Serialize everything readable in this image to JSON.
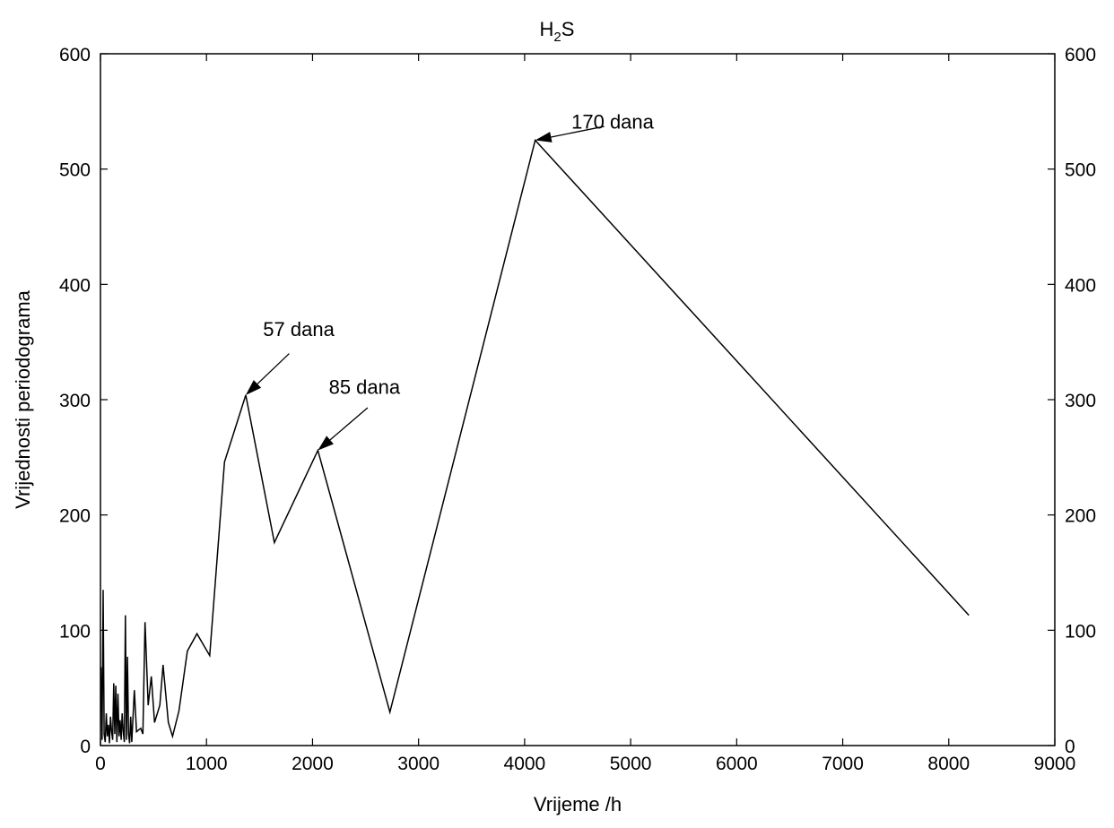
{
  "chart_data": {
    "type": "line",
    "title_main": "H",
    "title_sub": "2",
    "title_tail": "S",
    "xlabel": "Vrijeme /h",
    "ylabel": "Vrijednosti periodograma",
    "xlim": [
      0,
      9000
    ],
    "ylim": [
      0,
      600
    ],
    "x_ticks": [
      0,
      1000,
      2000,
      3000,
      4000,
      5000,
      6000,
      7000,
      8000,
      9000
    ],
    "y_ticks": [
      0,
      100,
      200,
      300,
      400,
      500,
      600
    ],
    "x_tick_labels": [
      "0",
      "1000",
      "2000",
      "3000",
      "4000",
      "5000",
      "6000",
      "7000",
      "8000",
      "9000"
    ],
    "y_tick_labels": [
      "0",
      "100",
      "200",
      "300",
      "400",
      "500",
      "600"
    ],
    "grid": false,
    "series": [
      {
        "x": [
          5,
          15,
          25,
          35,
          45,
          55,
          65,
          75,
          85,
          95,
          105,
          115,
          125,
          135,
          145,
          155,
          165,
          175,
          185,
          195,
          205,
          215,
          225,
          235,
          245,
          255,
          265,
          275,
          285,
          295,
          320,
          340,
          380,
          400,
          420,
          450,
          480,
          510,
          560,
          590,
          640,
          680,
          740,
          820,
          910,
          1030,
          1170,
          1370,
          1640,
          2050,
          2730,
          4100,
          8190
        ],
        "y": [
          68,
          5,
          135,
          10,
          3,
          28,
          8,
          18,
          2,
          25,
          12,
          5,
          54,
          10,
          52,
          3,
          45,
          8,
          22,
          5,
          28,
          12,
          3,
          113,
          5,
          77,
          10,
          2,
          25,
          3,
          48,
          12,
          15,
          10,
          107,
          35,
          60,
          20,
          35,
          70,
          20,
          8,
          30,
          82,
          97,
          78,
          246,
          304,
          176,
          256,
          29,
          525,
          113
        ],
        "color": "#000000"
      }
    ],
    "annotations": [
      {
        "text": "57 dana",
        "point": [
          1370,
          304
        ],
        "label": [
          1870,
          355
        ],
        "tail": [
          1780,
          340
        ]
      },
      {
        "text": "85 dana",
        "point": [
          2050,
          256
        ],
        "label": [
          2490,
          305
        ],
        "tail": [
          2520,
          293
        ]
      },
      {
        "text": "170 dana",
        "point": [
          4100,
          525
        ],
        "label": [
          4830,
          535
        ],
        "tail": [
          4750,
          537
        ]
      }
    ]
  }
}
